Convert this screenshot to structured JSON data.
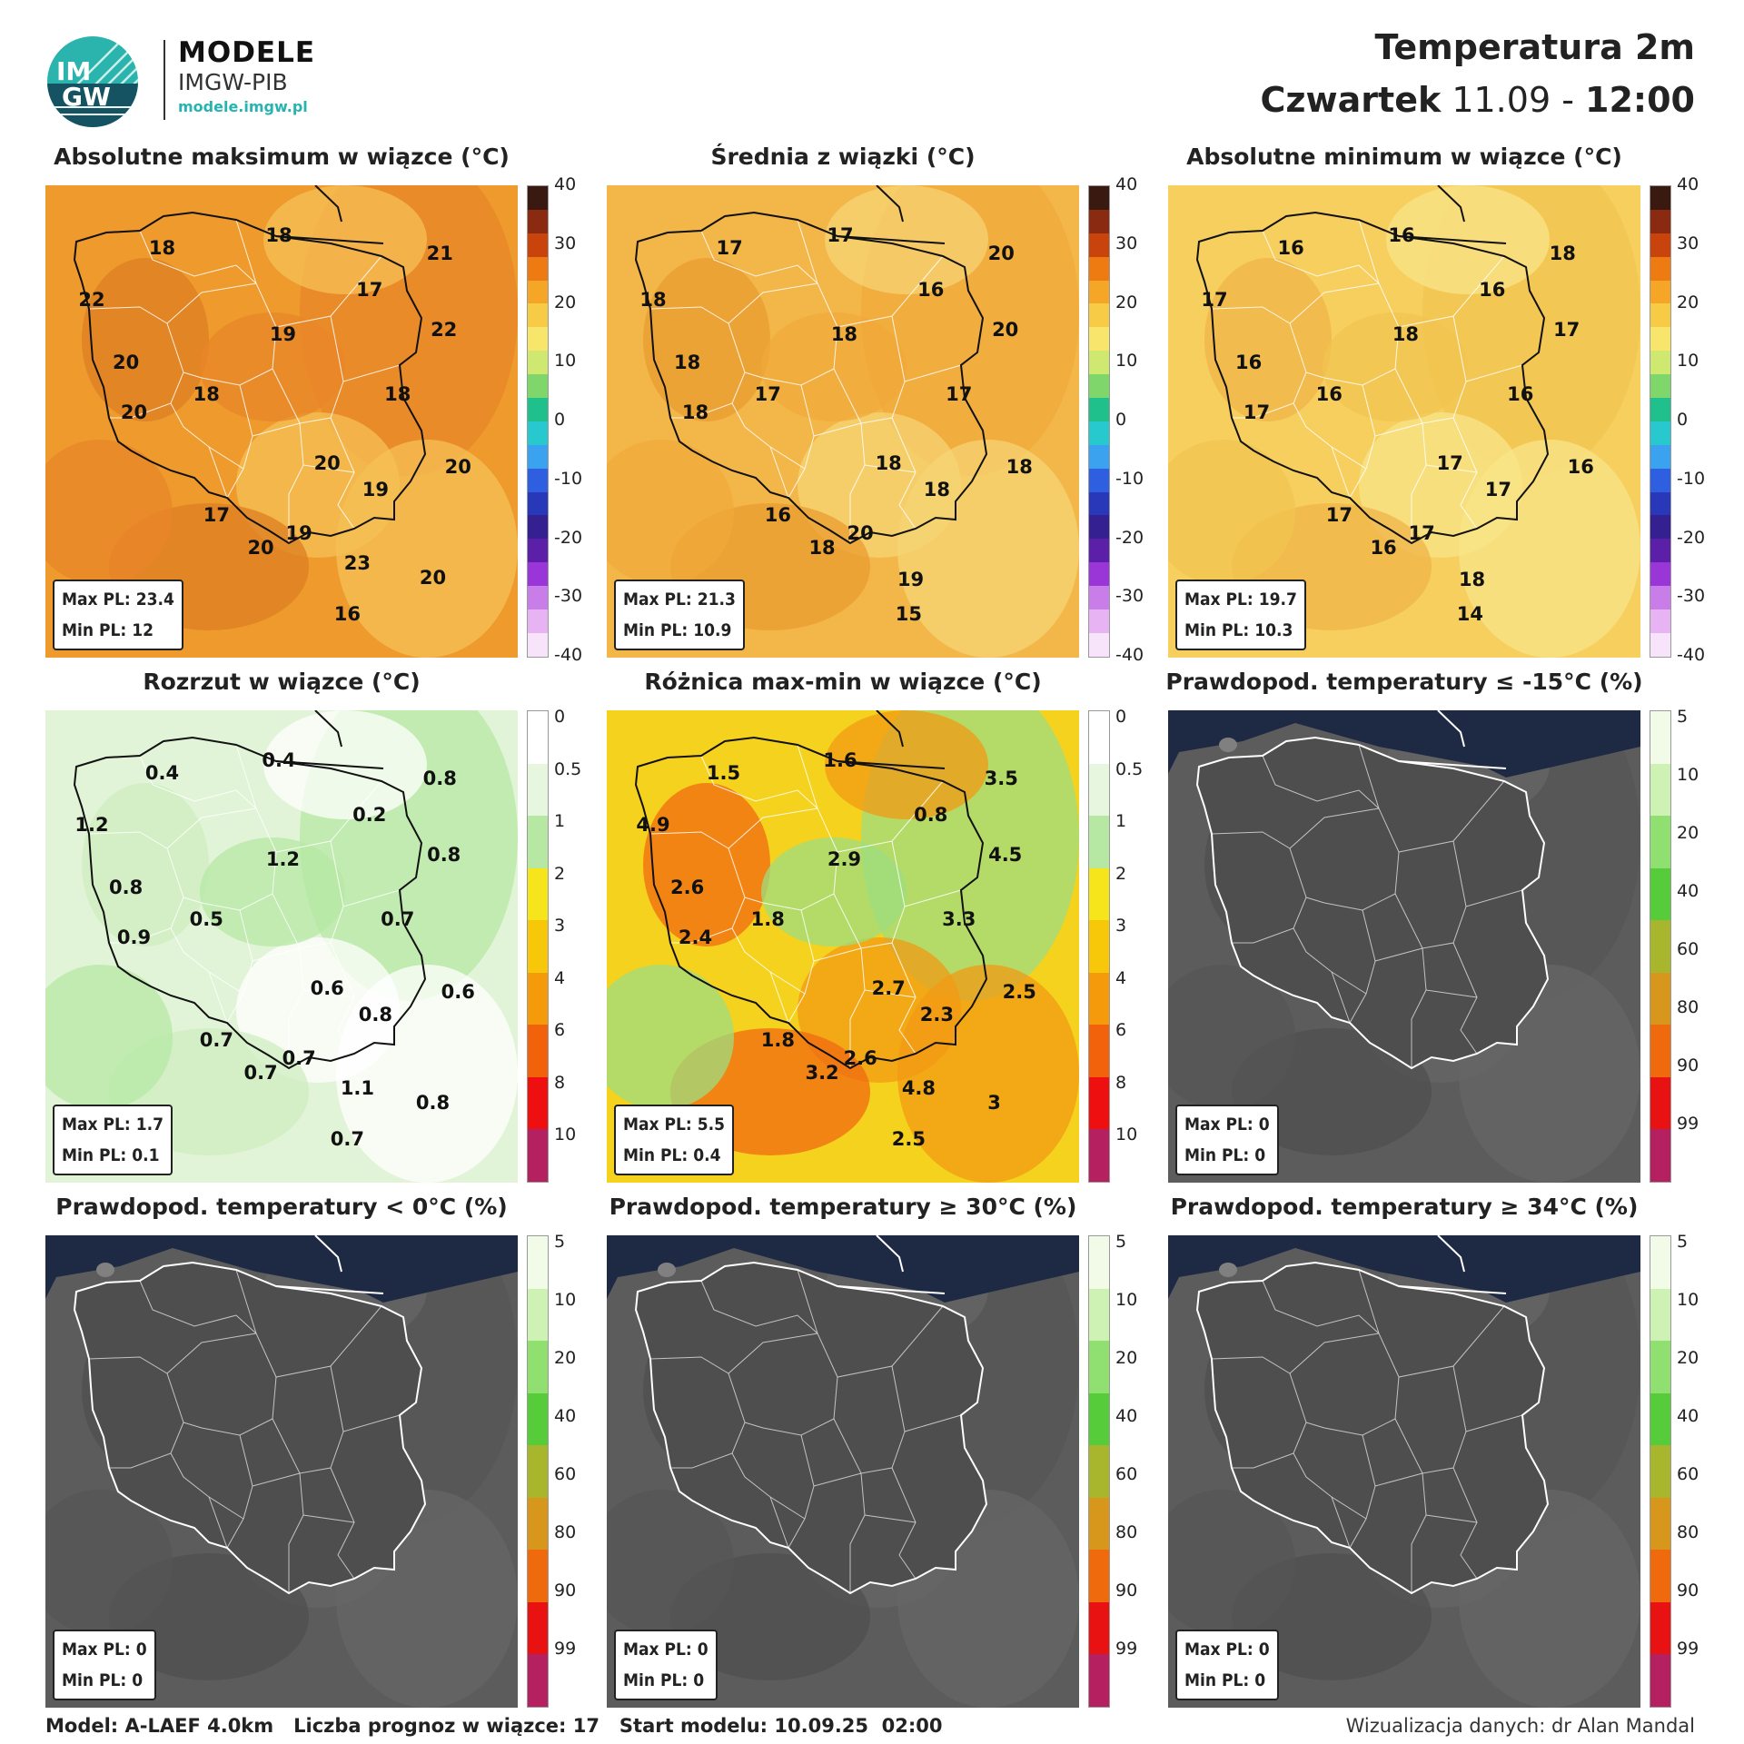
{
  "header": {
    "logo_text_top": "IM",
    "logo_text_bottom": "GW",
    "brand_title": "MODELE",
    "brand_sub": "IMGW-PIB",
    "brand_url": "modele.imgw.pl",
    "title": "Temperatura 2m",
    "day": "Czwartek",
    "date": "11.09",
    "separator": "-",
    "time": "12:00"
  },
  "colors": {
    "sea_gray_panels": "#1e2a44",
    "land_gray": "#5a5a5a"
  },
  "panels": [
    {
      "title": "Absolutne maksimum w wiązce (°C)",
      "scale": "temp",
      "fill": "orange",
      "stats": {
        "max": "Max PL: 23.4",
        "min": "Min PL: 12"
      },
      "labels": [
        "18",
        "18",
        "21",
        "22",
        "17",
        "22",
        "19",
        "20",
        "18",
        "20",
        "18",
        "20",
        "17",
        "20",
        "20",
        "19",
        "19",
        "23",
        "20",
        "16"
      ]
    },
    {
      "title": "Średnia z wiązki (°C)",
      "scale": "temp",
      "fill": "yellow-orange",
      "stats": {
        "max": "Max PL: 21.3",
        "min": "Min PL: 10.9"
      },
      "labels": [
        "17",
        "17",
        "20",
        "18",
        "16",
        "20",
        "18",
        "18",
        "17",
        "18",
        "17",
        "18",
        "16",
        "18",
        "18",
        "18",
        "20",
        "19",
        "15"
      ]
    },
    {
      "title": "Absolutne minimum w wiązce (°C)",
      "scale": "temp",
      "fill": "yellow",
      "stats": {
        "max": "Max PL: 19.7",
        "min": "Min PL: 10.3"
      },
      "labels": [
        "16",
        "16",
        "18",
        "17",
        "16",
        "17",
        "18",
        "16",
        "16",
        "17",
        "16",
        "17",
        "17",
        "16",
        "16",
        "17",
        "17",
        "18",
        "14"
      ]
    },
    {
      "title": "Rozrzut w wiązce (°C)",
      "scale": "spread",
      "fill": "white-green",
      "stats": {
        "max": "Max PL: 1.7",
        "min": "Min PL: 0.1"
      },
      "labels": [
        "0.4",
        "0.4",
        "0.8",
        "1.2",
        "0.2",
        "0.8",
        "1.2",
        "0.8",
        "0.5",
        "0.9",
        "0.7",
        "0.6",
        "0.7",
        "0.6",
        "0.7",
        "0.8",
        "0.7",
        "1.1",
        "0.8",
        "0.7"
      ]
    },
    {
      "title": "Różnica max-min w wiązce (°C)",
      "scale": "spread",
      "fill": "green-yellow-orange",
      "stats": {
        "max": "Max PL: 5.5",
        "min": "Min PL: 0.4"
      },
      "labels": [
        "1.5",
        "1.6",
        "3.5",
        "4.9",
        "0.8",
        "4.5",
        "2.9",
        "2.6",
        "1.8",
        "2.4",
        "3.3",
        "2.7",
        "1.8",
        "2.5",
        "3.2",
        "2.3",
        "2.6",
        "4.8",
        "3",
        "2.5"
      ]
    },
    {
      "title": "Prawdopod. temperatury ≤ -15°C (%)",
      "scale": "prob",
      "fill": "gray",
      "stats": {
        "max": "Max PL: 0",
        "min": "Min PL: 0"
      },
      "labels": []
    },
    {
      "title": "Prawdopod. temperatury < 0°C (%)",
      "scale": "prob",
      "fill": "gray",
      "stats": {
        "max": "Max PL: 0",
        "min": "Min PL: 0"
      },
      "labels": []
    },
    {
      "title": "Prawdopod. temperatury ≥ 30°C (%)",
      "scale": "prob",
      "fill": "gray",
      "stats": {
        "max": "Max PL: 0",
        "min": "Min PL: 0"
      },
      "labels": []
    },
    {
      "title": "Prawdopod. temperatury ≥ 34°C (%)",
      "scale": "prob",
      "fill": "gray",
      "stats": {
        "max": "Max PL: 0",
        "min": "Min PL: 0"
      },
      "labels": []
    }
  ],
  "scales": {
    "temp": {
      "ticks": [
        "40",
        "30",
        "20",
        "10",
        "0",
        "-10",
        "-20",
        "-30",
        "-40"
      ],
      "colors": [
        "#3a1a10",
        "#8a2a10",
        "#c8440c",
        "#ee7a12",
        "#f5a626",
        "#f8cb46",
        "#f7e56c",
        "#cfe870",
        "#7fd66a",
        "#1fc08c",
        "#27c9cf",
        "#3aa2ee",
        "#2d5fe0",
        "#2838b8",
        "#352092",
        "#5c1fa8",
        "#9a36d8",
        "#c97de8",
        "#e8b3f2",
        "#f7e3fa"
      ]
    },
    "spread": {
      "ticks": [
        "0",
        "0.5",
        "1",
        "2",
        "3",
        "4",
        "6",
        "8",
        "10"
      ],
      "colors": [
        "#ffffff",
        "#e6f6df",
        "#b6e8a4",
        "#f5e51a",
        "#f7c70a",
        "#f59a0a",
        "#f2620a",
        "#ee1010",
        "#b52060"
      ]
    },
    "prob": {
      "ticks": [
        "5",
        "10",
        "20",
        "40",
        "60",
        "80",
        "90",
        "99"
      ],
      "colors": [
        "#f2fbe8",
        "#cdf2b4",
        "#8fe070",
        "#56cc3a",
        "#a8b62e",
        "#d7961c",
        "#ee6a0c",
        "#e81212",
        "#b52060"
      ]
    }
  },
  "footer": {
    "model": "Model: A-LAEF 4.0km",
    "ensemble": "Liczba prognoz w wiązce: 17",
    "start": "Start modelu: 10.09.25  02:00",
    "credit": "Wizualizacja danych: dr Alan Mandal"
  }
}
